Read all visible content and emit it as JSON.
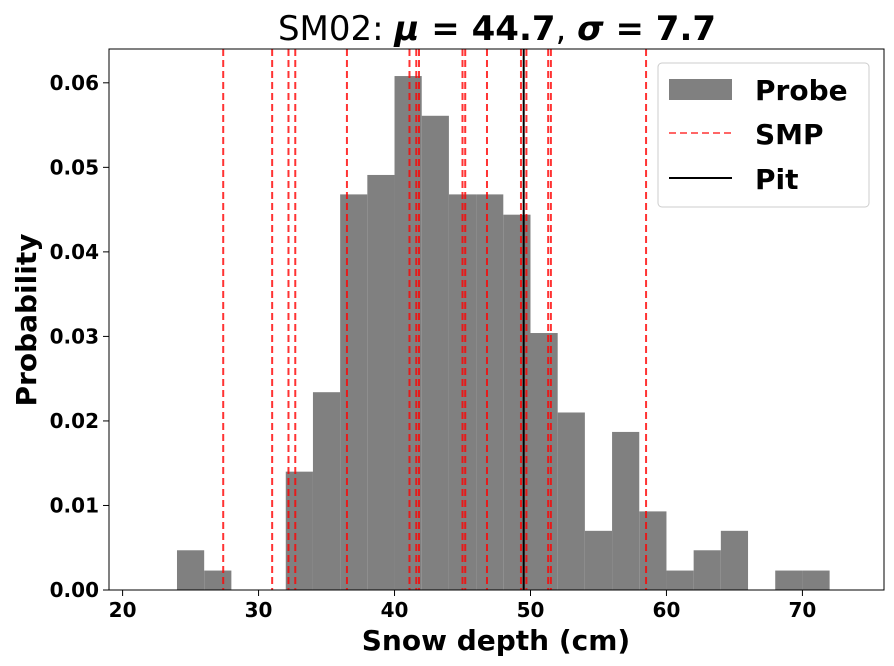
{
  "chart_data": {
    "type": "bar",
    "title_prefix": "SM02: ",
    "title_mu_symbol": "μ",
    "title_mu_value": "44.7",
    "title_sigma_symbol": "σ",
    "title_sigma_value": "7.7",
    "xlabel": "Snow depth (cm)",
    "ylabel": "Probability",
    "xlim": [
      19,
      76
    ],
    "ylim": [
      0,
      0.064
    ],
    "xticks": [
      20,
      30,
      40,
      50,
      60,
      70
    ],
    "yticks": [
      0.0,
      0.01,
      0.02,
      0.03,
      0.04,
      0.05,
      0.06
    ],
    "ytick_labels": [
      "0.00",
      "0.01",
      "0.02",
      "0.03",
      "0.04",
      "0.05",
      "0.06"
    ],
    "histogram": {
      "name": "Probe",
      "color": "#808080",
      "bin_edges": [
        24,
        26,
        28,
        30,
        32,
        34,
        36,
        38,
        40,
        42,
        44,
        46,
        48,
        50,
        52,
        54,
        56,
        58,
        60,
        62,
        64,
        66,
        68,
        70,
        72
      ],
      "values": [
        0.0047,
        0.0023,
        0,
        0,
        0.014,
        0.0234,
        0.0468,
        0.0491,
        0.0608,
        0.0561,
        0.0468,
        0.0468,
        0.0444,
        0.0304,
        0.021,
        0.007,
        0.0187,
        0.0093,
        0.0023,
        0.0047,
        0.007,
        0,
        0.0023,
        0.0023
      ]
    },
    "smp": {
      "name": "SMP",
      "color": "#ff0000",
      "x": [
        27.4,
        31.0,
        32.2,
        32.7,
        36.5,
        41.1,
        41.6,
        41.8,
        45.0,
        45.2,
        46.8,
        49.3,
        49.7,
        51.3,
        51.5,
        58.5
      ]
    },
    "pit": {
      "name": "Pit",
      "color": "#000000",
      "x": 49.5
    },
    "legend": {
      "placement": "top-right",
      "entries": [
        "Probe",
        "SMP",
        "Pit"
      ]
    },
    "grid": false
  }
}
